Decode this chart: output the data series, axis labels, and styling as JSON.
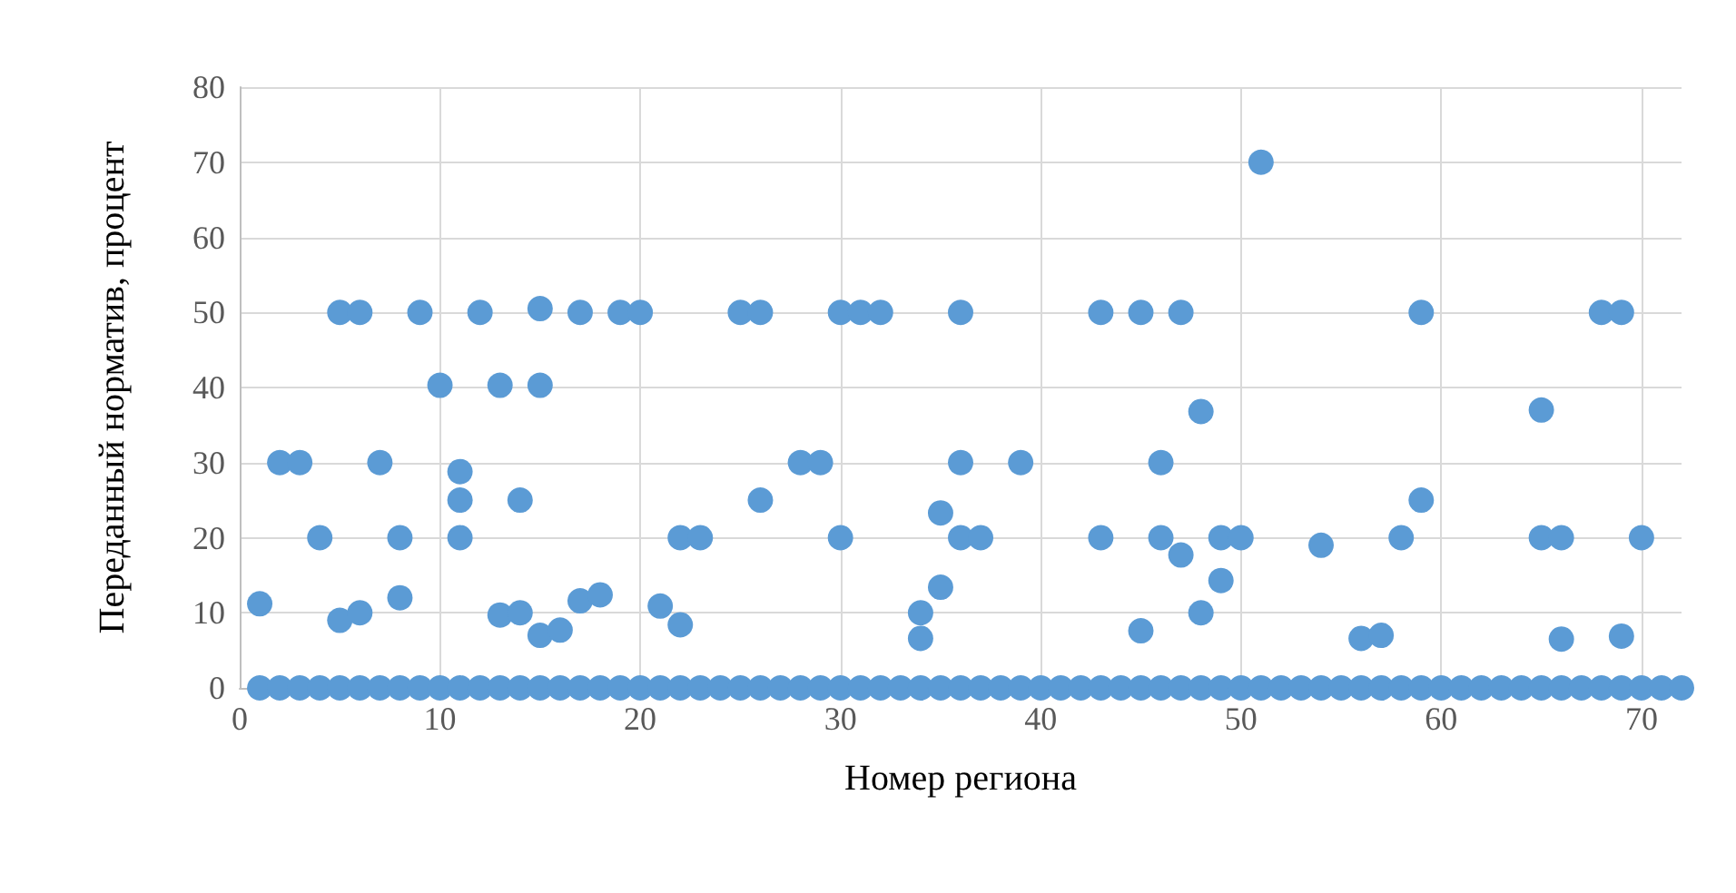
{
  "chart_data": {
    "type": "scatter",
    "xlabel": "Номер региона",
    "ylabel": "Переданный норматив, процент",
    "x": [
      1,
      2,
      3,
      4,
      5,
      6,
      7,
      8,
      9,
      10,
      11,
      12,
      13,
      14,
      15,
      16,
      17,
      18,
      19,
      20,
      21,
      22,
      23,
      24,
      25,
      26,
      27,
      28,
      29,
      30,
      31,
      32,
      33,
      34,
      35,
      36,
      37,
      38,
      39,
      40,
      41,
      42,
      43,
      44,
      45,
      46,
      47,
      48,
      49,
      50,
      51,
      52,
      53,
      54,
      55,
      56,
      57,
      58,
      59,
      60,
      61,
      62,
      63,
      64,
      65,
      66,
      67,
      68,
      69,
      70,
      71,
      72,
      1,
      2,
      3,
      4,
      5,
      5,
      6,
      6,
      7,
      8,
      8,
      9,
      10,
      11,
      11,
      11,
      12,
      13,
      13,
      14,
      14,
      15,
      15,
      15,
      16,
      17,
      17,
      18,
      19,
      20,
      21,
      22,
      22,
      23,
      25,
      26,
      26,
      28,
      29,
      30,
      30,
      31,
      32,
      34,
      34,
      35,
      35,
      36,
      36,
      36,
      37,
      39,
      43,
      43,
      45,
      45,
      46,
      46,
      47,
      47,
      48,
      48,
      49,
      49,
      50,
      51,
      54,
      56,
      57,
      58,
      59,
      59,
      65,
      65,
      66,
      66,
      68,
      69,
      69,
      70
    ],
    "values": [
      0,
      0,
      0,
      0,
      0,
      0,
      0,
      0,
      0,
      0,
      0,
      0,
      0,
      0,
      0,
      0,
      0,
      0,
      0,
      0,
      0,
      0,
      0,
      0,
      0,
      0,
      0,
      0,
      0,
      0,
      0,
      0,
      0,
      0,
      0,
      0,
      0,
      0,
      0,
      0,
      0,
      0,
      0,
      0,
      0,
      0,
      0,
      0,
      0,
      0,
      0,
      0,
      0,
      0,
      0,
      0,
      0,
      0,
      0,
      0,
      0,
      0,
      0,
      0,
      0,
      0,
      0,
      0,
      0,
      0,
      0,
      0,
      11.2,
      30,
      30,
      20,
      50,
      9,
      50,
      10,
      30,
      20,
      12,
      50,
      40.3,
      28.8,
      25,
      20,
      50,
      40.3,
      9.7,
      25,
      10,
      50.5,
      40.3,
      7,
      7.7,
      50,
      11.6,
      12.4,
      50,
      50,
      10.9,
      20,
      8.4,
      20,
      50,
      50,
      25,
      30,
      30,
      50,
      20,
      50,
      50,
      10,
      6.6,
      23.3,
      13.4,
      50,
      30,
      20,
      20,
      30,
      50,
      20,
      50,
      7.6,
      30,
      20,
      50,
      17.7,
      36.8,
      10,
      20,
      14.3,
      20,
      70,
      19,
      6.6,
      7,
      20,
      50,
      25,
      37,
      20,
      20,
      6.5,
      50,
      50,
      6.9,
      20
    ],
    "color": "#5b9bd5",
    "marker": "circle",
    "grid": true,
    "xlim": [
      0,
      72
    ],
    "xticks": [
      0,
      10,
      20,
      30,
      40,
      50,
      60,
      70
    ],
    "ylim": [
      0,
      80
    ],
    "yticks": [
      0,
      10,
      20,
      30,
      40,
      50,
      60,
      70,
      80
    ]
  }
}
